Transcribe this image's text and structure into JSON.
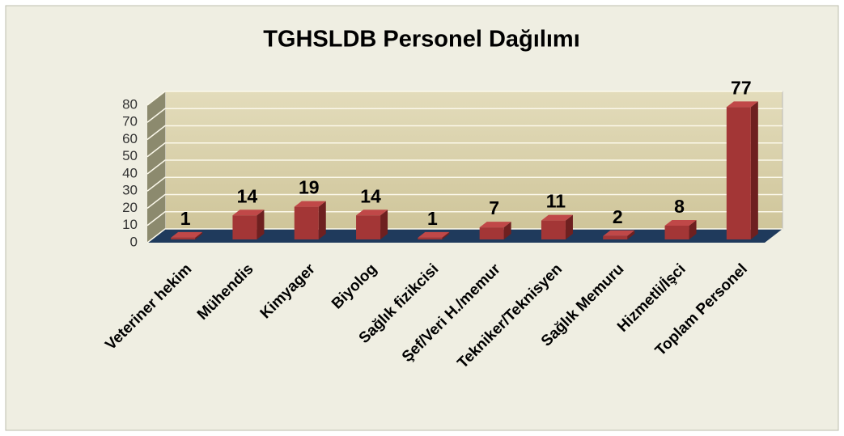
{
  "chart_data": {
    "type": "bar3d",
    "title": "TGHSLDB Personel Dağılımı",
    "categories": [
      "Veteriner hekim",
      "Mühendis",
      "Kimyager",
      "Biyolog",
      "Sağlık fizikcisi",
      "Şef/Veri H./memur",
      "Tekniker/Teknisyen",
      "Sağlık Memuru",
      "Hizmetli/İşci",
      "Toplam Personel"
    ],
    "values": [
      1,
      14,
      19,
      14,
      1,
      7,
      11,
      2,
      8,
      77
    ],
    "color": "#a33636",
    "ylim": [
      0,
      80
    ],
    "yticks": [
      0,
      10,
      20,
      30,
      40,
      50,
      60,
      70,
      80
    ],
    "grid": true
  }
}
